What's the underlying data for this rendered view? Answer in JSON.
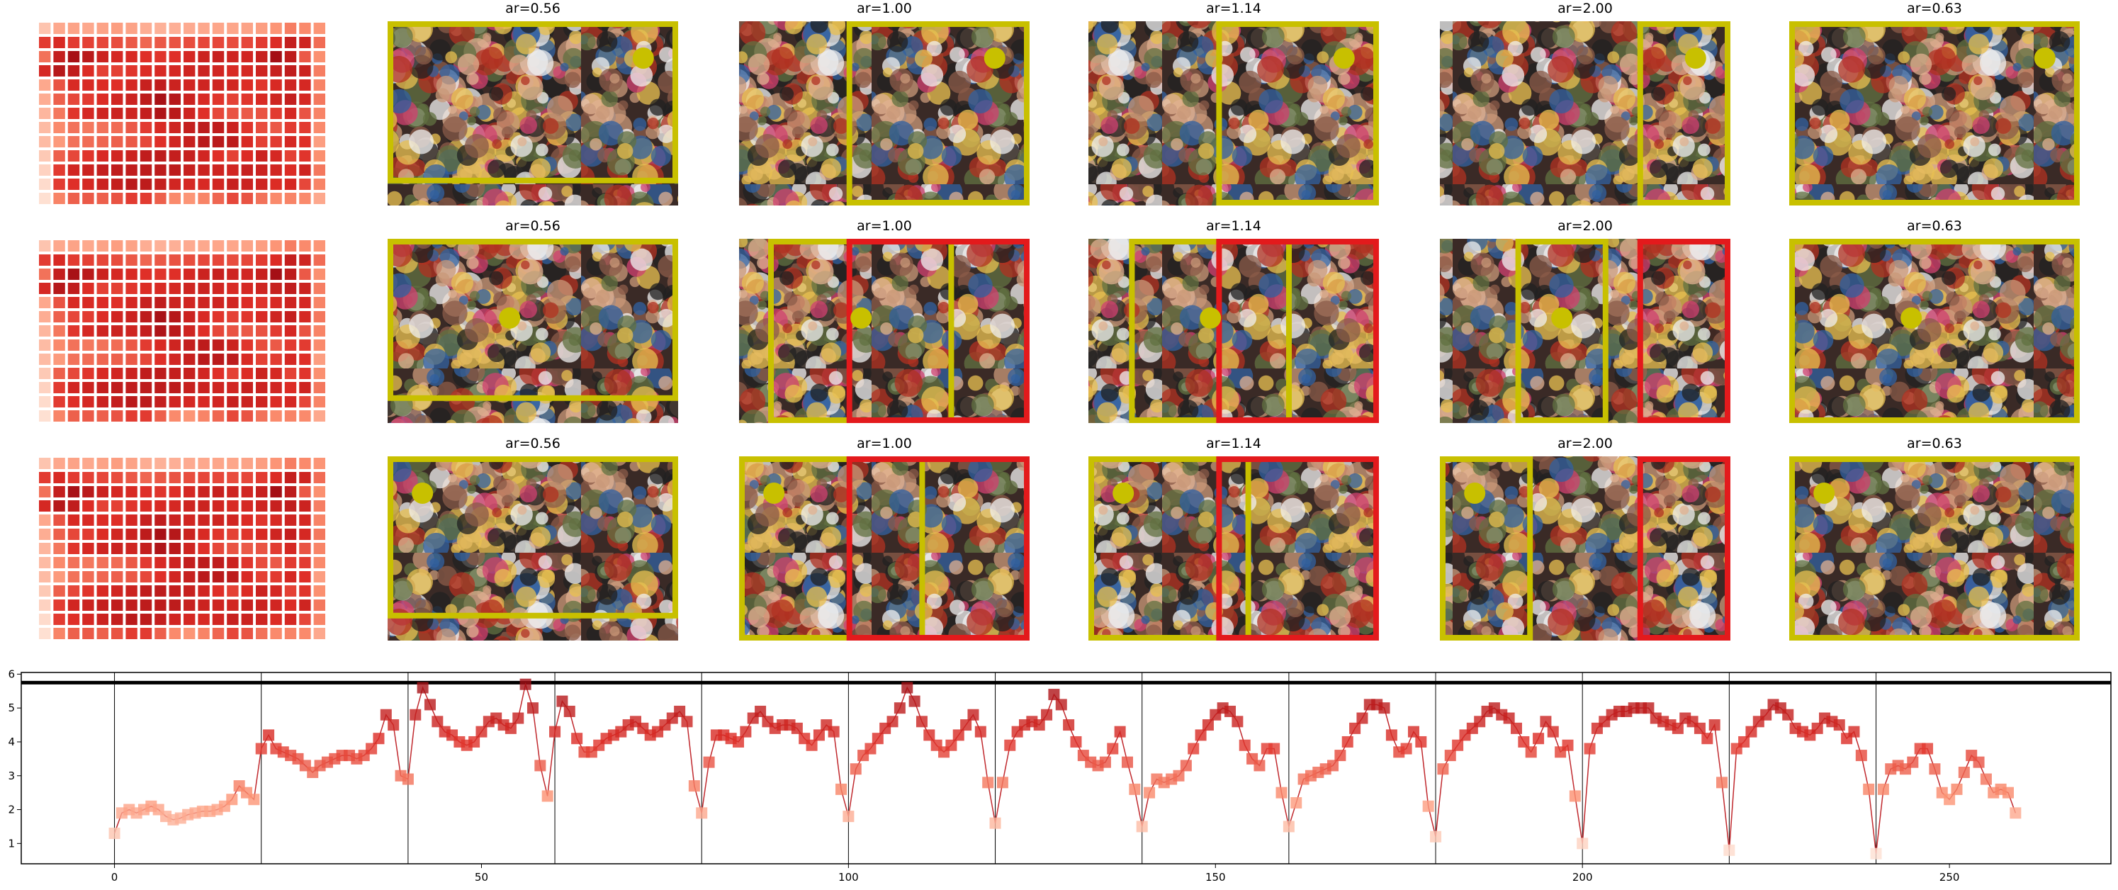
{
  "panel_titles": [
    [
      "ar=0.56",
      "ar=1.00",
      "ar=1.14",
      "ar=2.00",
      "ar=0.63"
    ],
    [
      "ar=0.56",
      "ar=1.00",
      "ar=1.14",
      "ar=2.00",
      "ar=0.63"
    ],
    [
      "ar=0.56",
      "ar=1.00",
      "ar=1.14",
      "ar=2.00",
      "ar=0.63"
    ]
  ],
  "chart_data": {
    "type": "line",
    "colormap": [
      "#fee0d2",
      "#fc9272",
      "#de2d26",
      "#a50f15"
    ],
    "line_color": "#c0282d",
    "xlim": [
      -12.7,
      272
    ],
    "ylim": [
      0.4,
      6.05
    ],
    "xticks": [
      0,
      50,
      100,
      150,
      200,
      250
    ],
    "yticks": [
      1,
      2,
      3,
      4,
      5,
      6
    ],
    "vlines": [
      0,
      20,
      40,
      60,
      80,
      100,
      120,
      140,
      160,
      180,
      200,
      220,
      240
    ],
    "hline": 5.75,
    "values": [
      1.3,
      1.9,
      2.0,
      1.9,
      2.0,
      2.1,
      2.0,
      1.8,
      1.7,
      1.75,
      1.85,
      1.9,
      1.95,
      1.95,
      2.0,
      2.1,
      2.3,
      2.7,
      2.5,
      2.3,
      3.8,
      4.2,
      3.8,
      3.7,
      3.6,
      3.5,
      3.3,
      3.1,
      3.3,
      3.4,
      3.5,
      3.6,
      3.6,
      3.5,
      3.6,
      3.8,
      4.1,
      4.8,
      4.5,
      3.0,
      2.9,
      4.8,
      5.6,
      5.1,
      4.6,
      4.3,
      4.2,
      4.0,
      3.9,
      4.0,
      4.3,
      4.6,
      4.7,
      4.5,
      4.4,
      4.7,
      5.7,
      5.0,
      3.3,
      2.4,
      4.3,
      5.2,
      4.9,
      4.1,
      3.7,
      3.7,
      3.9,
      4.1,
      4.2,
      4.3,
      4.5,
      4.6,
      4.4,
      4.2,
      4.3,
      4.5,
      4.7,
      4.9,
      4.6,
      2.7,
      1.9,
      3.4,
      4.2,
      4.2,
      4.1,
      4.0,
      4.3,
      4.7,
      4.9,
      4.6,
      4.4,
      4.5,
      4.5,
      4.4,
      4.1,
      3.9,
      4.2,
      4.5,
      4.3,
      2.6,
      1.8,
      3.2,
      3.6,
      3.8,
      4.1,
      4.4,
      4.6,
      5.0,
      5.6,
      5.2,
      4.6,
      4.2,
      3.9,
      3.7,
      3.9,
      4.2,
      4.5,
      4.8,
      4.3,
      2.8,
      1.6,
      2.8,
      3.9,
      4.3,
      4.5,
      4.6,
      4.5,
      4.8,
      5.4,
      5.1,
      4.5,
      4.0,
      3.6,
      3.4,
      3.3,
      3.4,
      3.8,
      4.3,
      3.4,
      2.6,
      1.5,
      2.5,
      2.9,
      2.8,
      2.9,
      3.0,
      3.3,
      3.8,
      4.2,
      4.5,
      4.8,
      5.0,
      4.9,
      4.6,
      3.9,
      3.5,
      3.3,
      3.8,
      3.8,
      2.5,
      1.5,
      2.2,
      2.9,
      3.0,
      3.1,
      3.2,
      3.3,
      3.6,
      4.0,
      4.4,
      4.7,
      5.1,
      5.1,
      5.0,
      4.2,
      3.7,
      3.8,
      4.3,
      4.0,
      2.1,
      1.2,
      3.2,
      3.6,
      3.9,
      4.2,
      4.4,
      4.6,
      4.9,
      5.0,
      4.8,
      4.7,
      4.4,
      4.0,
      3.7,
      4.1,
      4.6,
      4.3,
      3.7,
      3.9,
      2.4,
      1.0,
      3.8,
      4.4,
      4.6,
      4.8,
      4.9,
      4.9,
      5.0,
      5.0,
      5.0,
      4.7,
      4.6,
      4.5,
      4.4,
      4.7,
      4.6,
      4.4,
      4.1,
      4.5,
      2.8,
      0.8,
      3.8,
      4.0,
      4.3,
      4.6,
      4.8,
      5.1,
      5.0,
      4.8,
      4.4,
      4.3,
      4.2,
      4.4,
      4.7,
      4.6,
      4.5,
      4.1,
      4.3,
      3.6,
      2.6,
      0.7,
      2.6,
      3.2,
      3.3,
      3.2,
      3.4,
      3.8,
      3.8,
      3.2,
      2.5,
      2.3,
      2.6,
      3.1,
      3.6,
      3.4,
      2.9,
      2.5,
      2.6,
      2.5,
      1.9
    ]
  }
}
